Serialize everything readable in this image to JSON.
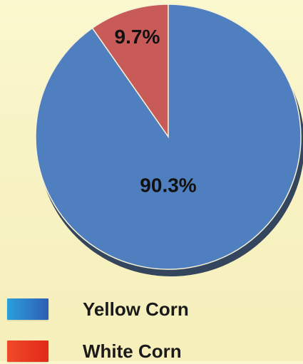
{
  "chart_data": {
    "type": "pie",
    "categories": [
      "Yellow Corn",
      "White Corn"
    ],
    "values": [
      90.3,
      9.7
    ],
    "value_labels": [
      "90.3%",
      "9.7%"
    ],
    "colors": [
      "#4f7fbe",
      "#c85a57"
    ],
    "legend_swatch_colors": [
      [
        "#2aa0dc",
        "#2f5db4"
      ],
      [
        "#f04a28",
        "#e02a18"
      ]
    ],
    "start_angle_deg": -90,
    "direction": "counterclockwise",
    "legend_position": "bottom-left"
  }
}
